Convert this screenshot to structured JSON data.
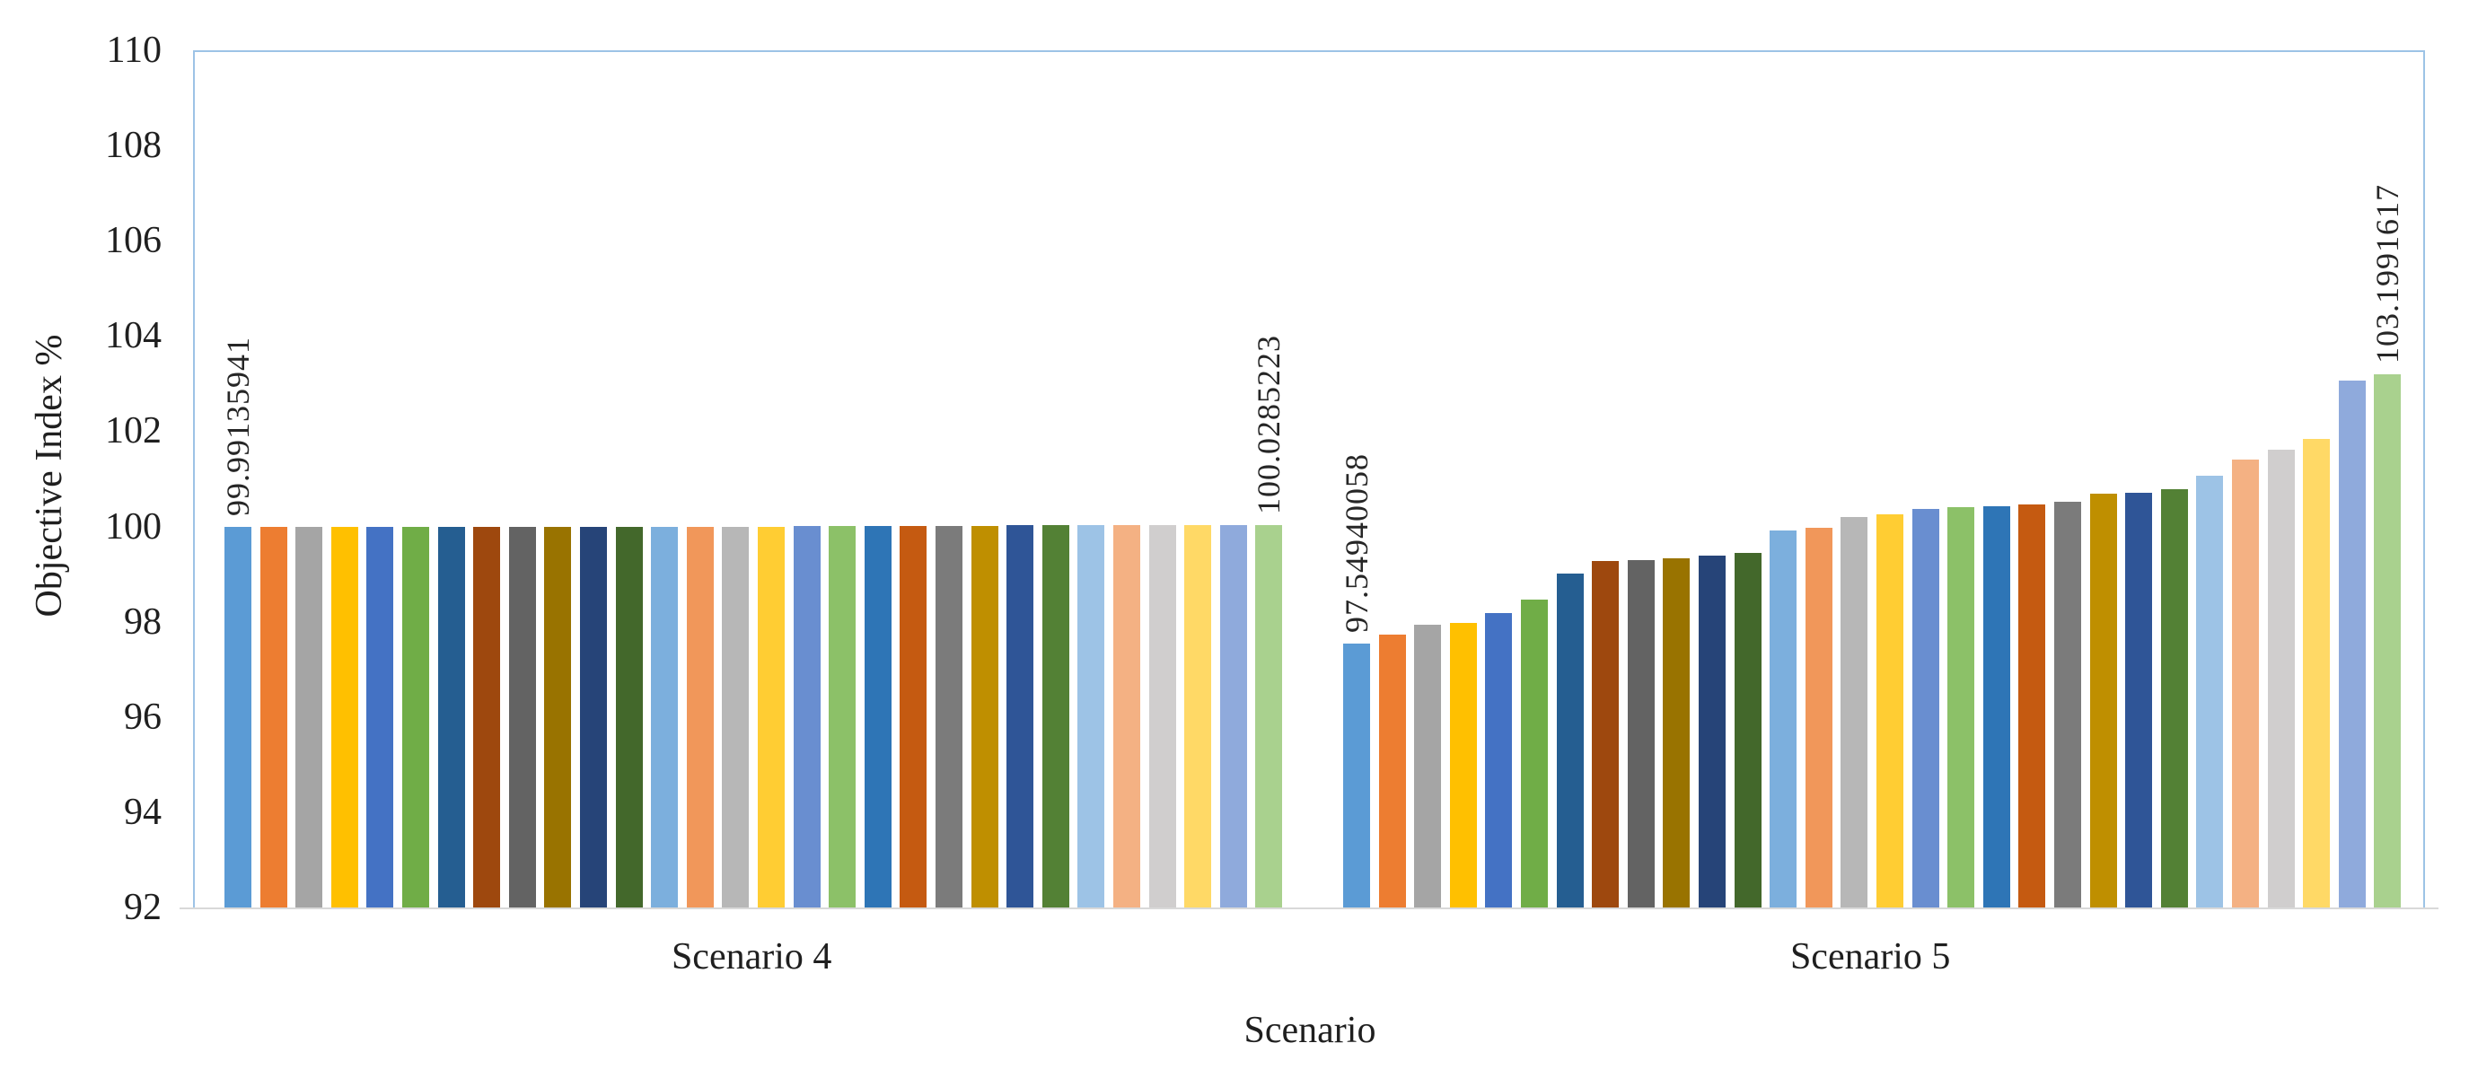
{
  "figure": {
    "background": "#FFFFFF",
    "plot_border_color": "#9DC3E6",
    "axis_line_color": "#D9D9D9",
    "text_color": "#1F1F1F"
  },
  "chart_data": {
    "type": "bar",
    "title": "",
    "xlabel": "Scenario",
    "ylabel": "Objective Index %",
    "ylim": [
      92,
      110
    ],
    "yticks": [
      92,
      94,
      96,
      98,
      100,
      102,
      104,
      106,
      108,
      110
    ],
    "grid": false,
    "legend": false,
    "categories": [
      "Scenario 4",
      "Scenario 5"
    ],
    "series_palette": [
      "#5B9BD5",
      "#ED7D31",
      "#A5A5A5",
      "#FFC000",
      "#4472C4",
      "#70AD47",
      "#255E91",
      "#9E480E",
      "#636363",
      "#997300",
      "#264478",
      "#43682B",
      "#7CAFDD",
      "#F1975A",
      "#B7B7B7",
      "#FFCD33",
      "#698ED0",
      "#8CC168",
      "#2E75B6",
      "#C55A11",
      "#7B7B7B",
      "#BF8F00",
      "#2F5597",
      "#538135",
      "#9DC3E6",
      "#F4B183",
      "#D0CECE",
      "#FFD966",
      "#8FAADC",
      "#A9D18E"
    ],
    "groups": [
      {
        "label": "Scenario 4",
        "values": [
          99.99135941,
          99.992,
          99.9925,
          99.993,
          99.9935,
          99.994,
          99.9945,
          99.995,
          99.9955,
          99.996,
          99.9965,
          99.997,
          99.9975,
          99.998,
          99.9985,
          99.999,
          100.002,
          100.005,
          100.009,
          100.013,
          100.017,
          100.02,
          100.022,
          100.024,
          100.0255,
          100.0265,
          100.027,
          100.0275,
          100.028,
          100.0285223
        ]
      },
      {
        "label": "Scenario 5",
        "values": [
          97.54940058,
          97.73,
          97.93,
          97.98,
          98.19,
          98.46,
          99.01,
          99.27,
          99.29,
          99.33,
          99.39,
          99.45,
          99.92,
          99.98,
          100.2,
          100.25,
          100.36,
          100.41,
          100.43,
          100.47,
          100.52,
          100.68,
          100.7,
          100.79,
          101.07,
          101.4,
          101.62,
          101.83,
          103.07,
          103.1991617
        ]
      }
    ],
    "annotations": [
      {
        "group": 0,
        "bar": 0,
        "text": "99.99135941"
      },
      {
        "group": 0,
        "bar": 29,
        "text": "100.0285223"
      },
      {
        "group": 1,
        "bar": 0,
        "text": "97.54940058"
      },
      {
        "group": 1,
        "bar": 29,
        "text": "103.1991617"
      }
    ]
  }
}
